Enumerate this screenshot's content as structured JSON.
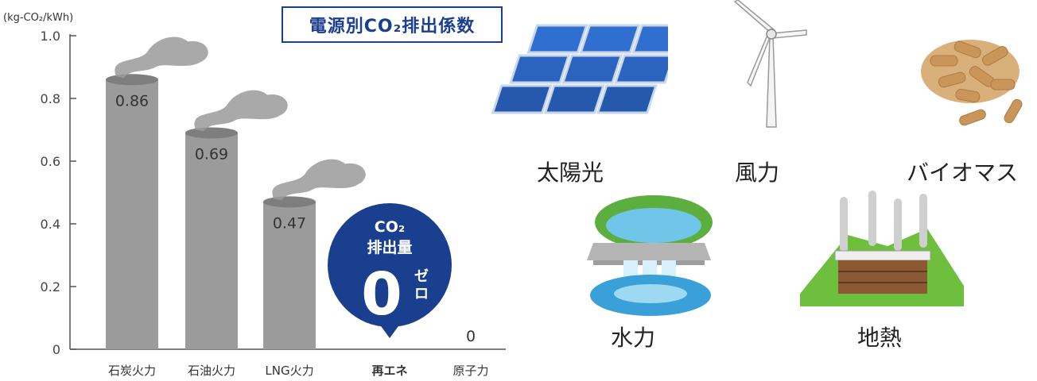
{
  "chart_data": {
    "type": "bar",
    "title": "電源別CO₂排出係数",
    "unit": "(kg-CO₂/kWh)",
    "categories": [
      "石炭火力",
      "石油火力",
      "LNG火力",
      "再エネ",
      "原子力"
    ],
    "values": [
      0.86,
      0.69,
      0.47,
      0,
      0
    ],
    "value_labels": [
      "0.86",
      "0.69",
      "0.47",
      "",
      "0"
    ],
    "ylim": [
      0,
      1.0
    ],
    "yticks": [
      "0",
      "0.2",
      "0.4",
      "0.6",
      "0.8",
      "1.0"
    ],
    "grid": false,
    "bar_color": "#9b9b9b",
    "highlight_color": "#1b3f8f"
  },
  "callout": {
    "co2": "CO₂",
    "line2": "排出量",
    "zero": "0",
    "zero_ruby": "ゼロ"
  },
  "sources": [
    {
      "label": "太陽光",
      "icon": "solar-panel-icon"
    },
    {
      "label": "風力",
      "icon": "wind-turbine-icon"
    },
    {
      "label": "バイオマス",
      "icon": "biomass-pellets-icon"
    },
    {
      "label": "水力",
      "icon": "hydro-dam-icon"
    },
    {
      "label": "地熱",
      "icon": "geothermal-plant-icon"
    }
  ]
}
